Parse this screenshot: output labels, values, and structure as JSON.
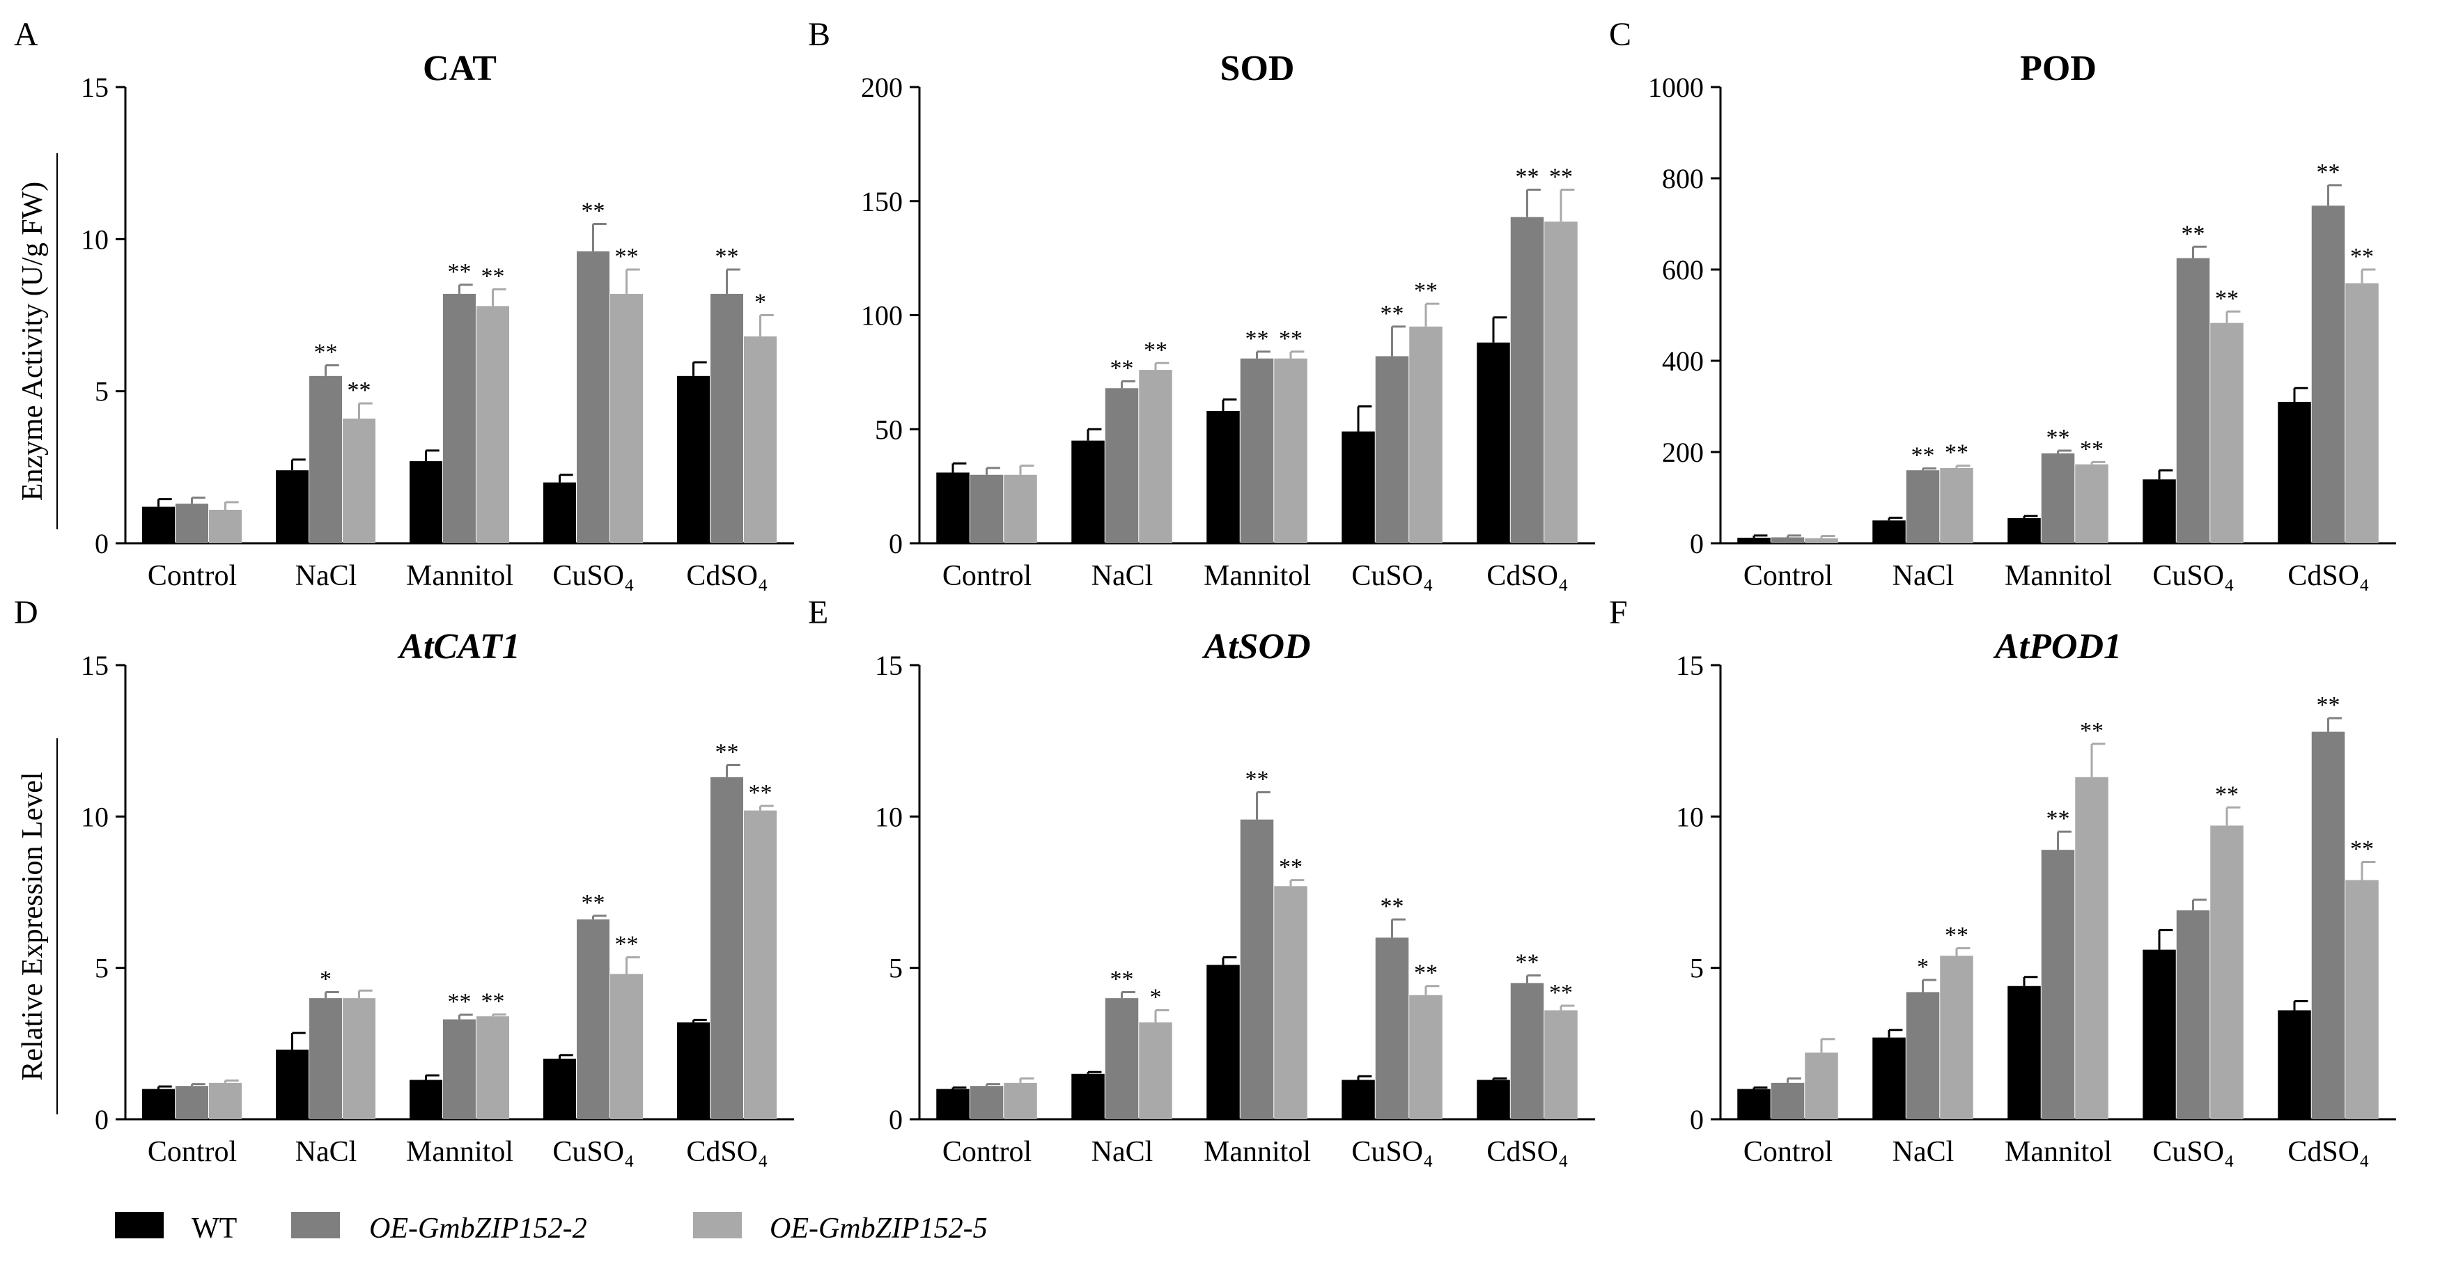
{
  "legend": {
    "series": [
      {
        "name": "WT",
        "color": "#000000",
        "italic": false
      },
      {
        "name": "OE-GmbZIP152-2",
        "color": "#7f7f7f",
        "italic": true
      },
      {
        "name": "OE-GmbZIP152-5",
        "color": "#a9a9a9",
        "italic": true
      }
    ]
  },
  "ylabels": {
    "top": "Enzyme Activity (U/g FW)",
    "bottom": "Relative Expression Level"
  },
  "chart_data": [
    {
      "type": "bar",
      "letter": "A",
      "title": "CAT",
      "title_italic": false,
      "categories": [
        "Control",
        "NaCl",
        "Mannitol",
        "CuSO₄",
        "CdSO₄"
      ],
      "ylim": [
        0,
        15
      ],
      "yticks": [
        0,
        5,
        10,
        15
      ],
      "series": [
        {
          "name": "WT",
          "values": [
            1.2,
            2.4,
            2.7,
            2.0,
            5.5
          ],
          "errors": [
            0.25,
            0.35,
            0.35,
            0.25,
            0.45
          ],
          "sig": [
            "",
            "",
            "",
            "",
            ""
          ]
        },
        {
          "name": "OE-GmbZIP152-2",
          "values": [
            1.3,
            5.5,
            8.2,
            9.6,
            8.2
          ],
          "errors": [
            0.2,
            0.35,
            0.3,
            0.9,
            0.8
          ],
          "sig": [
            "",
            "**",
            "**",
            "**",
            "**"
          ]
        },
        {
          "name": "OE-GmbZIP152-5",
          "values": [
            1.1,
            4.1,
            7.8,
            8.2,
            6.8
          ],
          "errors": [
            0.25,
            0.5,
            0.55,
            0.8,
            0.7
          ],
          "sig": [
            "",
            "**",
            "**",
            "**",
            "*"
          ]
        }
      ]
    },
    {
      "type": "bar",
      "letter": "B",
      "title": "SOD",
      "title_italic": false,
      "categories": [
        "Control",
        "NaCl",
        "Mannitol",
        "CuSO₄",
        "CdSO₄"
      ],
      "ylim": [
        0,
        200
      ],
      "yticks": [
        0,
        50,
        100,
        150,
        200
      ],
      "series": [
        {
          "name": "WT",
          "values": [
            31,
            45,
            58,
            49,
            88
          ],
          "errors": [
            4,
            5,
            5,
            11,
            11
          ],
          "sig": [
            "",
            "",
            "",
            "",
            ""
          ]
        },
        {
          "name": "OE-GmbZIP152-2",
          "values": [
            30,
            68,
            81,
            82,
            143
          ],
          "errors": [
            3,
            3,
            3,
            13,
            12
          ],
          "sig": [
            "",
            "**",
            "**",
            "**",
            "**"
          ]
        },
        {
          "name": "OE-GmbZIP152-5",
          "values": [
            30,
            76,
            81,
            95,
            141
          ],
          "errors": [
            4,
            3,
            3,
            10,
            14
          ],
          "sig": [
            "",
            "**",
            "**",
            "**",
            "**"
          ]
        }
      ]
    },
    {
      "type": "bar",
      "letter": "C",
      "title": "POD",
      "title_italic": false,
      "categories": [
        "Control",
        "NaCl",
        "Mannitol",
        "CuSO₄",
        "CdSO₄"
      ],
      "ylim": [
        0,
        1000
      ],
      "yticks": [
        0,
        200,
        400,
        600,
        800,
        1000
      ],
      "series": [
        {
          "name": "WT",
          "values": [
            12,
            50,
            55,
            140,
            310
          ],
          "errors": [
            5,
            6,
            5,
            20,
            30
          ],
          "sig": [
            "",
            "",
            "",
            "",
            ""
          ]
        },
        {
          "name": "OE-GmbZIP152-2",
          "values": [
            13,
            160,
            197,
            625,
            740
          ],
          "errors": [
            4,
            4,
            6,
            25,
            45
          ],
          "sig": [
            "",
            "**",
            "**",
            "**",
            "**"
          ]
        },
        {
          "name": "OE-GmbZIP152-5",
          "values": [
            11,
            165,
            173,
            483,
            570
          ],
          "errors": [
            5,
            5,
            5,
            25,
            30
          ],
          "sig": [
            "",
            "**",
            "**",
            "**",
            "**"
          ]
        }
      ]
    },
    {
      "type": "bar",
      "letter": "D",
      "title": "AtCAT1",
      "title_italic": true,
      "categories": [
        "Control",
        "NaCl",
        "Mannitol",
        "CuSO₄",
        "CdSO₄"
      ],
      "ylim": [
        0,
        15
      ],
      "yticks": [
        0,
        5,
        10,
        15
      ],
      "series": [
        {
          "name": "WT",
          "values": [
            1.0,
            2.3,
            1.3,
            2.0,
            3.2
          ],
          "errors": [
            0.08,
            0.55,
            0.15,
            0.12,
            0.08
          ],
          "sig": [
            "",
            "",
            "",
            "",
            ""
          ]
        },
        {
          "name": "OE-GmbZIP152-2",
          "values": [
            1.1,
            4.0,
            3.3,
            6.6,
            11.3
          ],
          "errors": [
            0.06,
            0.2,
            0.15,
            0.12,
            0.4
          ],
          "sig": [
            "",
            "*",
            "**",
            "**",
            "**"
          ]
        },
        {
          "name": "OE-GmbZIP152-5",
          "values": [
            1.2,
            4.0,
            3.4,
            4.8,
            10.2
          ],
          "errors": [
            0.08,
            0.25,
            0.06,
            0.55,
            0.15
          ],
          "sig": [
            "",
            "",
            "**",
            "**",
            "**"
          ]
        }
      ]
    },
    {
      "type": "bar",
      "letter": "E",
      "title": "AtSOD",
      "title_italic": true,
      "categories": [
        "Control",
        "NaCl",
        "Mannitol",
        "CuSO₄",
        "CdSO₄"
      ],
      "ylim": [
        0,
        15
      ],
      "yticks": [
        0,
        5,
        10,
        15
      ],
      "series": [
        {
          "name": "WT",
          "values": [
            1.0,
            1.5,
            5.1,
            1.3,
            1.3
          ],
          "errors": [
            0.05,
            0.06,
            0.25,
            0.12,
            0.05
          ],
          "sig": [
            "",
            "",
            "",
            "",
            ""
          ]
        },
        {
          "name": "OE-GmbZIP152-2",
          "values": [
            1.1,
            4.0,
            9.9,
            6.0,
            4.5
          ],
          "errors": [
            0.06,
            0.2,
            0.9,
            0.6,
            0.25
          ],
          "sig": [
            "",
            "**",
            "**",
            "**",
            "**"
          ]
        },
        {
          "name": "OE-GmbZIP152-5",
          "values": [
            1.2,
            3.2,
            7.7,
            4.1,
            3.6
          ],
          "errors": [
            0.15,
            0.4,
            0.2,
            0.3,
            0.15
          ],
          "sig": [
            "",
            "*",
            "**",
            "**",
            "**"
          ]
        }
      ]
    },
    {
      "type": "bar",
      "letter": "F",
      "title": "AtPOD1",
      "title_italic": true,
      "categories": [
        "Control",
        "NaCl",
        "Mannitol",
        "CuSO₄",
        "CdSO₄"
      ],
      "ylim": [
        0,
        15
      ],
      "yticks": [
        0,
        5,
        10,
        15
      ],
      "series": [
        {
          "name": "WT",
          "values": [
            1.0,
            2.7,
            4.4,
            5.6,
            3.6
          ],
          "errors": [
            0.05,
            0.25,
            0.3,
            0.65,
            0.3
          ],
          "sig": [
            "",
            "",
            "",
            "",
            ""
          ]
        },
        {
          "name": "OE-GmbZIP152-2",
          "values": [
            1.2,
            4.2,
            8.9,
            6.9,
            12.8
          ],
          "errors": [
            0.15,
            0.4,
            0.6,
            0.35,
            0.45
          ],
          "sig": [
            "",
            "*",
            "**",
            "",
            "**"
          ]
        },
        {
          "name": "OE-GmbZIP152-5",
          "values": [
            2.2,
            5.4,
            11.3,
            9.7,
            7.9
          ],
          "errors": [
            0.45,
            0.25,
            1.1,
            0.6,
            0.6
          ],
          "sig": [
            "",
            "**",
            "**",
            "**",
            "**"
          ]
        }
      ]
    }
  ]
}
